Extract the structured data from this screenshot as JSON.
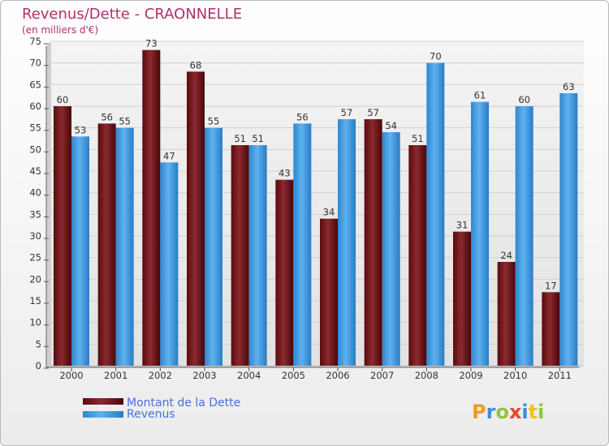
{
  "chart_data": {
    "type": "bar",
    "title": "Revenus/Dette - CRAONNELLE",
    "subtitle": "(en milliers d'€)",
    "categories": [
      "2000",
      "2001",
      "2002",
      "2003",
      "2004",
      "2005",
      "2006",
      "2007",
      "2008",
      "2009",
      "2010",
      "2011"
    ],
    "series": [
      {
        "name": "Montant de la Dette",
        "color": "#6b1014",
        "values": [
          60,
          56,
          73,
          68,
          51,
          43,
          34,
          57,
          51,
          31,
          24,
          17
        ]
      },
      {
        "name": "Revenus",
        "color": "#3f9ee8",
        "values": [
          53,
          55,
          47,
          55,
          51,
          56,
          57,
          54,
          70,
          61,
          60,
          63
        ]
      }
    ],
    "ylim": [
      0,
      75
    ],
    "yticks": [
      0,
      5,
      10,
      15,
      20,
      25,
      30,
      35,
      40,
      45,
      50,
      55,
      60,
      65,
      70,
      75
    ],
    "grid": true,
    "legend_position": "bottom-left"
  },
  "logo": {
    "text": "Proxiti"
  }
}
